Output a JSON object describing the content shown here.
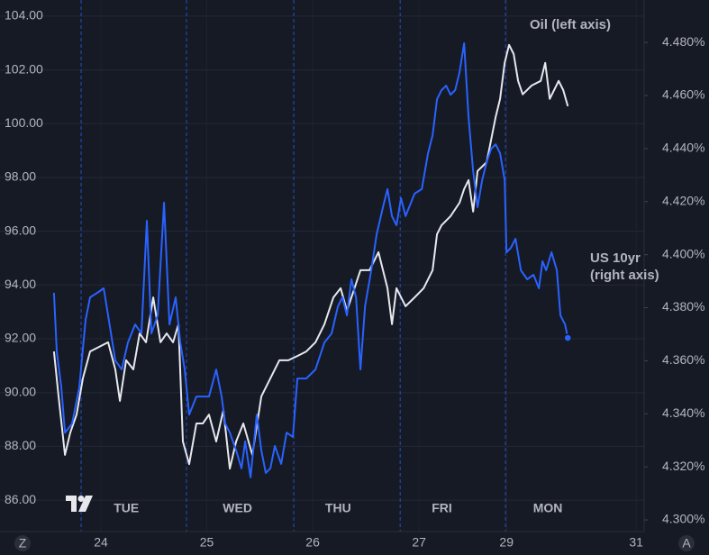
{
  "chart_data": {
    "type": "line",
    "background": "#161a25",
    "grid": true,
    "xlim": [
      -0.953,
      5.13
    ],
    "ylim": [
      84.83,
      104.6
    ],
    "y2lim": [
      4.2956,
      4.496
    ],
    "xticks": [
      {
        "value": 0,
        "label": "24"
      },
      {
        "value": 1.0,
        "label": "25"
      },
      {
        "value": 2.0,
        "label": "26"
      },
      {
        "value": 3.004,
        "label": "27"
      },
      {
        "value": 3.83,
        "label": "29"
      },
      {
        "value": 5.055,
        "label": "31"
      }
    ],
    "yticks": [
      {
        "value": 86,
        "label": "86.00"
      },
      {
        "value": 88,
        "label": "88.00"
      },
      {
        "value": 90,
        "label": "90.00"
      },
      {
        "value": 92,
        "label": "92.00"
      },
      {
        "value": 94,
        "label": "94.00"
      },
      {
        "value": 96,
        "label": "96.00"
      },
      {
        "value": 98,
        "label": "98.00"
      },
      {
        "value": 100,
        "label": "100.00"
      },
      {
        "value": 102,
        "label": "102.00"
      },
      {
        "value": 104,
        "label": "104.00"
      }
    ],
    "y2ticks": [
      {
        "value": 4.3,
        "label": "4.300%"
      },
      {
        "value": 4.32,
        "label": "4.320%"
      },
      {
        "value": 4.34,
        "label": "4.340%"
      },
      {
        "value": 4.36,
        "label": "4.360%"
      },
      {
        "value": 4.38,
        "label": "4.380%"
      },
      {
        "value": 4.4,
        "label": "4.400%"
      },
      {
        "value": 4.42,
        "label": "4.420%"
      },
      {
        "value": 4.44,
        "label": "4.440%"
      },
      {
        "value": 4.46,
        "label": "4.460%"
      },
      {
        "value": 4.48,
        "label": "4.480%"
      }
    ],
    "session_breaks": [
      -0.187,
      0.808,
      1.821,
      2.826,
      3.821
    ],
    "day_labels": [
      {
        "value": 0.24,
        "label": "TUE"
      },
      {
        "value": 1.29,
        "label": "WED"
      },
      {
        "value": 2.24,
        "label": "THU"
      },
      {
        "value": 3.22,
        "label": "FRI"
      },
      {
        "value": 4.22,
        "label": "MON"
      }
    ],
    "corner_buttons": [
      "Z",
      "A"
    ],
    "series": [
      {
        "name": "Oil (left axis)",
        "color": "#e6e8ee",
        "axis": "y",
        "x": [
          -0.443,
          -0.4,
          -0.34,
          -0.289,
          -0.23,
          -0.17,
          -0.102,
          -0.017,
          0.068,
          0.136,
          0.179,
          0.238,
          0.306,
          0.366,
          0.426,
          0.494,
          0.562,
          0.621,
          0.681,
          0.732,
          0.774,
          0.834,
          0.902,
          0.962,
          1.021,
          1.089,
          1.157,
          1.217,
          1.277,
          1.345,
          1.43,
          1.515,
          1.6,
          1.685,
          1.77,
          1.855,
          1.94,
          2.026,
          2.111,
          2.196,
          2.264,
          2.323,
          2.366,
          2.451,
          2.536,
          2.621,
          2.706,
          2.749,
          2.791,
          2.877,
          2.962,
          3.047,
          3.132,
          3.174,
          3.217,
          3.302,
          3.387,
          3.43,
          3.472,
          3.515,
          3.557,
          3.643,
          3.685,
          3.728,
          3.77,
          3.813,
          3.855,
          3.898,
          3.94,
          3.983,
          4.068,
          4.153,
          4.196,
          4.238,
          4.323,
          4.366,
          4.409
        ],
        "values": [
          91.53,
          89.86,
          87.68,
          88.51,
          89.18,
          90.53,
          91.53,
          91.7,
          91.87,
          90.86,
          89.69,
          91.2,
          90.86,
          92.2,
          91.87,
          93.54,
          91.87,
          92.2,
          91.87,
          92.54,
          88.18,
          87.34,
          88.85,
          88.85,
          89.18,
          88.18,
          89.35,
          87.17,
          88.18,
          88.85,
          87.68,
          89.86,
          90.53,
          91.2,
          91.2,
          91.36,
          91.53,
          91.87,
          92.54,
          93.54,
          93.88,
          93.04,
          93.54,
          94.55,
          94.55,
          95.22,
          93.88,
          92.54,
          93.88,
          93.21,
          93.54,
          93.88,
          94.55,
          95.89,
          96.22,
          96.56,
          97.06,
          97.57,
          97.9,
          96.73,
          98.24,
          98.57,
          99.41,
          100.25,
          100.92,
          102.26,
          102.93,
          102.59,
          101.59,
          101.09,
          101.42,
          101.59,
          102.26,
          100.92,
          101.59,
          101.25,
          100.65
        ]
      },
      {
        "name": "US 10yr (right axis)",
        "color": "#2962ff",
        "axis": "y2",
        "x": [
          -0.443,
          -0.417,
          -0.374,
          -0.34,
          -0.272,
          -0.204,
          -0.145,
          -0.102,
          -0.034,
          0.026,
          0.068,
          0.136,
          0.196,
          0.255,
          0.323,
          0.383,
          0.434,
          0.477,
          0.536,
          0.596,
          0.647,
          0.706,
          0.749,
          0.791,
          0.834,
          0.902,
          0.962,
          1.021,
          1.089,
          1.14,
          1.174,
          1.217,
          1.277,
          1.328,
          1.362,
          1.413,
          1.472,
          1.515,
          1.557,
          1.6,
          1.643,
          1.702,
          1.753,
          1.813,
          1.855,
          1.94,
          2.026,
          2.111,
          2.179,
          2.238,
          2.281,
          2.323,
          2.366,
          2.409,
          2.451,
          2.494,
          2.553,
          2.604,
          2.664,
          2.706,
          2.749,
          2.791,
          2.834,
          2.877,
          2.962,
          3.03,
          3.089,
          3.132,
          3.174,
          3.217,
          3.26,
          3.302,
          3.345,
          3.387,
          3.43,
          3.472,
          3.515,
          3.557,
          3.6,
          3.643,
          3.685,
          3.728,
          3.77,
          3.813,
          3.83,
          3.872,
          3.915,
          3.966,
          4.026,
          4.085,
          4.136,
          4.17,
          4.204,
          4.255,
          4.306,
          4.34,
          4.383,
          4.409
        ],
        "values": [
          4.3856,
          4.3635,
          4.3499,
          4.3329,
          4.3363,
          4.3499,
          4.3754,
          4.3839,
          4.3856,
          4.3873,
          4.3771,
          4.3601,
          4.3567,
          4.3669,
          4.3737,
          4.3703,
          4.4128,
          4.3703,
          4.3771,
          4.4196,
          4.3737,
          4.3839,
          4.3669,
          4.3567,
          4.3397,
          4.3465,
          4.3465,
          4.3465,
          4.3567,
          4.3465,
          4.3363,
          4.3329,
          4.3262,
          4.3194,
          4.3296,
          4.316,
          4.3397,
          4.3262,
          4.3177,
          4.3194,
          4.3279,
          4.3211,
          4.3329,
          4.3313,
          4.3533,
          4.3533,
          4.3567,
          4.3669,
          4.3703,
          4.3805,
          4.3839,
          4.3771,
          4.3907,
          4.3839,
          4.3567,
          4.3805,
          4.3941,
          4.4077,
          4.4179,
          4.4247,
          4.4145,
          4.4111,
          4.4213,
          4.4145,
          4.423,
          4.4247,
          4.4382,
          4.445,
          4.4586,
          4.462,
          4.4637,
          4.4603,
          4.462,
          4.4688,
          4.4797,
          4.4518,
          4.4315,
          4.4179,
          4.4281,
          4.4349,
          4.4399,
          4.4416,
          4.4382,
          4.4281,
          4.4009,
          4.4026,
          4.406,
          4.3941,
          4.3907,
          4.3924,
          4.3873,
          4.3975,
          4.3941,
          4.4009,
          4.3941,
          4.3771,
          4.3737,
          4.3686
        ]
      }
    ],
    "annotations": [
      {
        "text": "Oil (left axis)",
        "series": 0
      },
      {
        "text": "US 10yr",
        "series": 1
      },
      {
        "text": "(right axis)",
        "series": 1
      }
    ]
  }
}
